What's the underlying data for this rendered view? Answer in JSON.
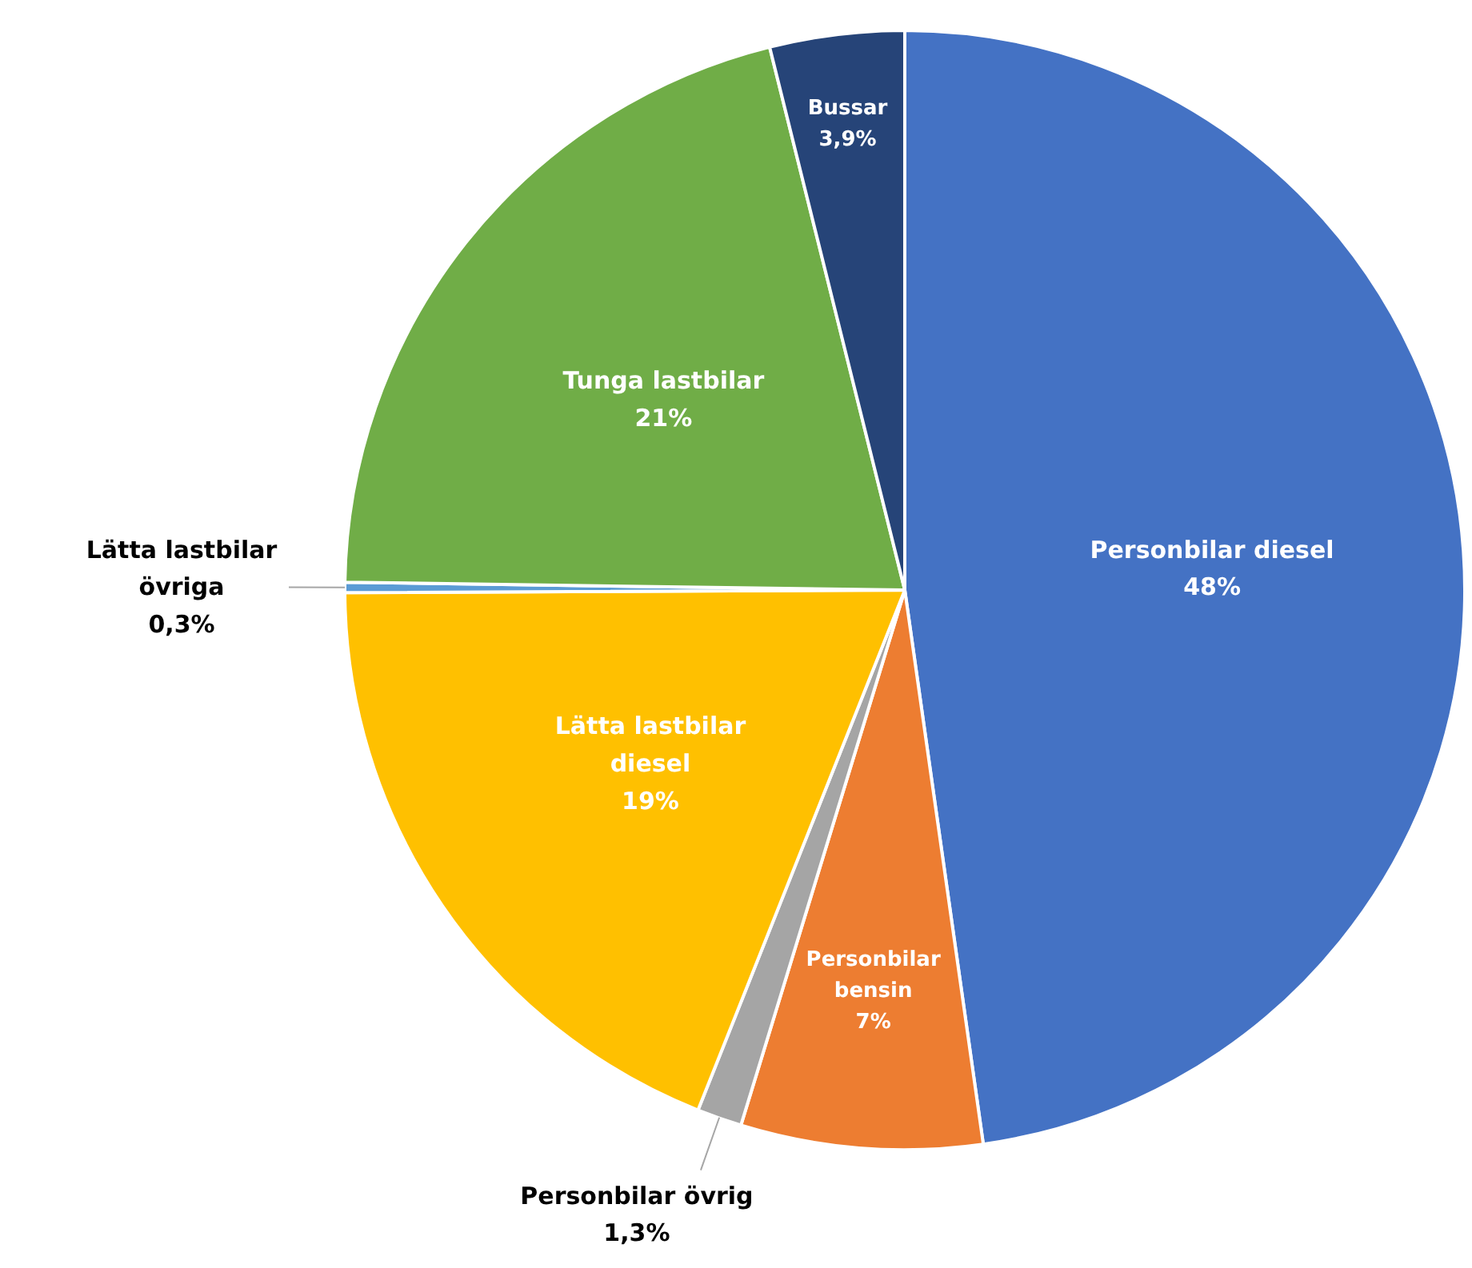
{
  "chart_data": {
    "type": "pie",
    "categories": [
      "Personbilar diesel",
      "Personbilar bensin",
      "Personbilar övrig",
      "Lätta lastbilar diesel",
      "Lätta lastbilar övriga",
      "Tunga lastbilar",
      "Bussar"
    ],
    "values": [
      48,
      7,
      1.3,
      19,
      0.3,
      21,
      3.9
    ],
    "value_labels": [
      "48%",
      "7%",
      "1,3%",
      "19%",
      "0,3%",
      "21%",
      "3,9%"
    ],
    "colors": [
      "#4472c4",
      "#ed7d31",
      "#a5a5a5",
      "#ffc000",
      "#5b9bd5",
      "#70ad47",
      "#264478"
    ],
    "legend": false
  }
}
